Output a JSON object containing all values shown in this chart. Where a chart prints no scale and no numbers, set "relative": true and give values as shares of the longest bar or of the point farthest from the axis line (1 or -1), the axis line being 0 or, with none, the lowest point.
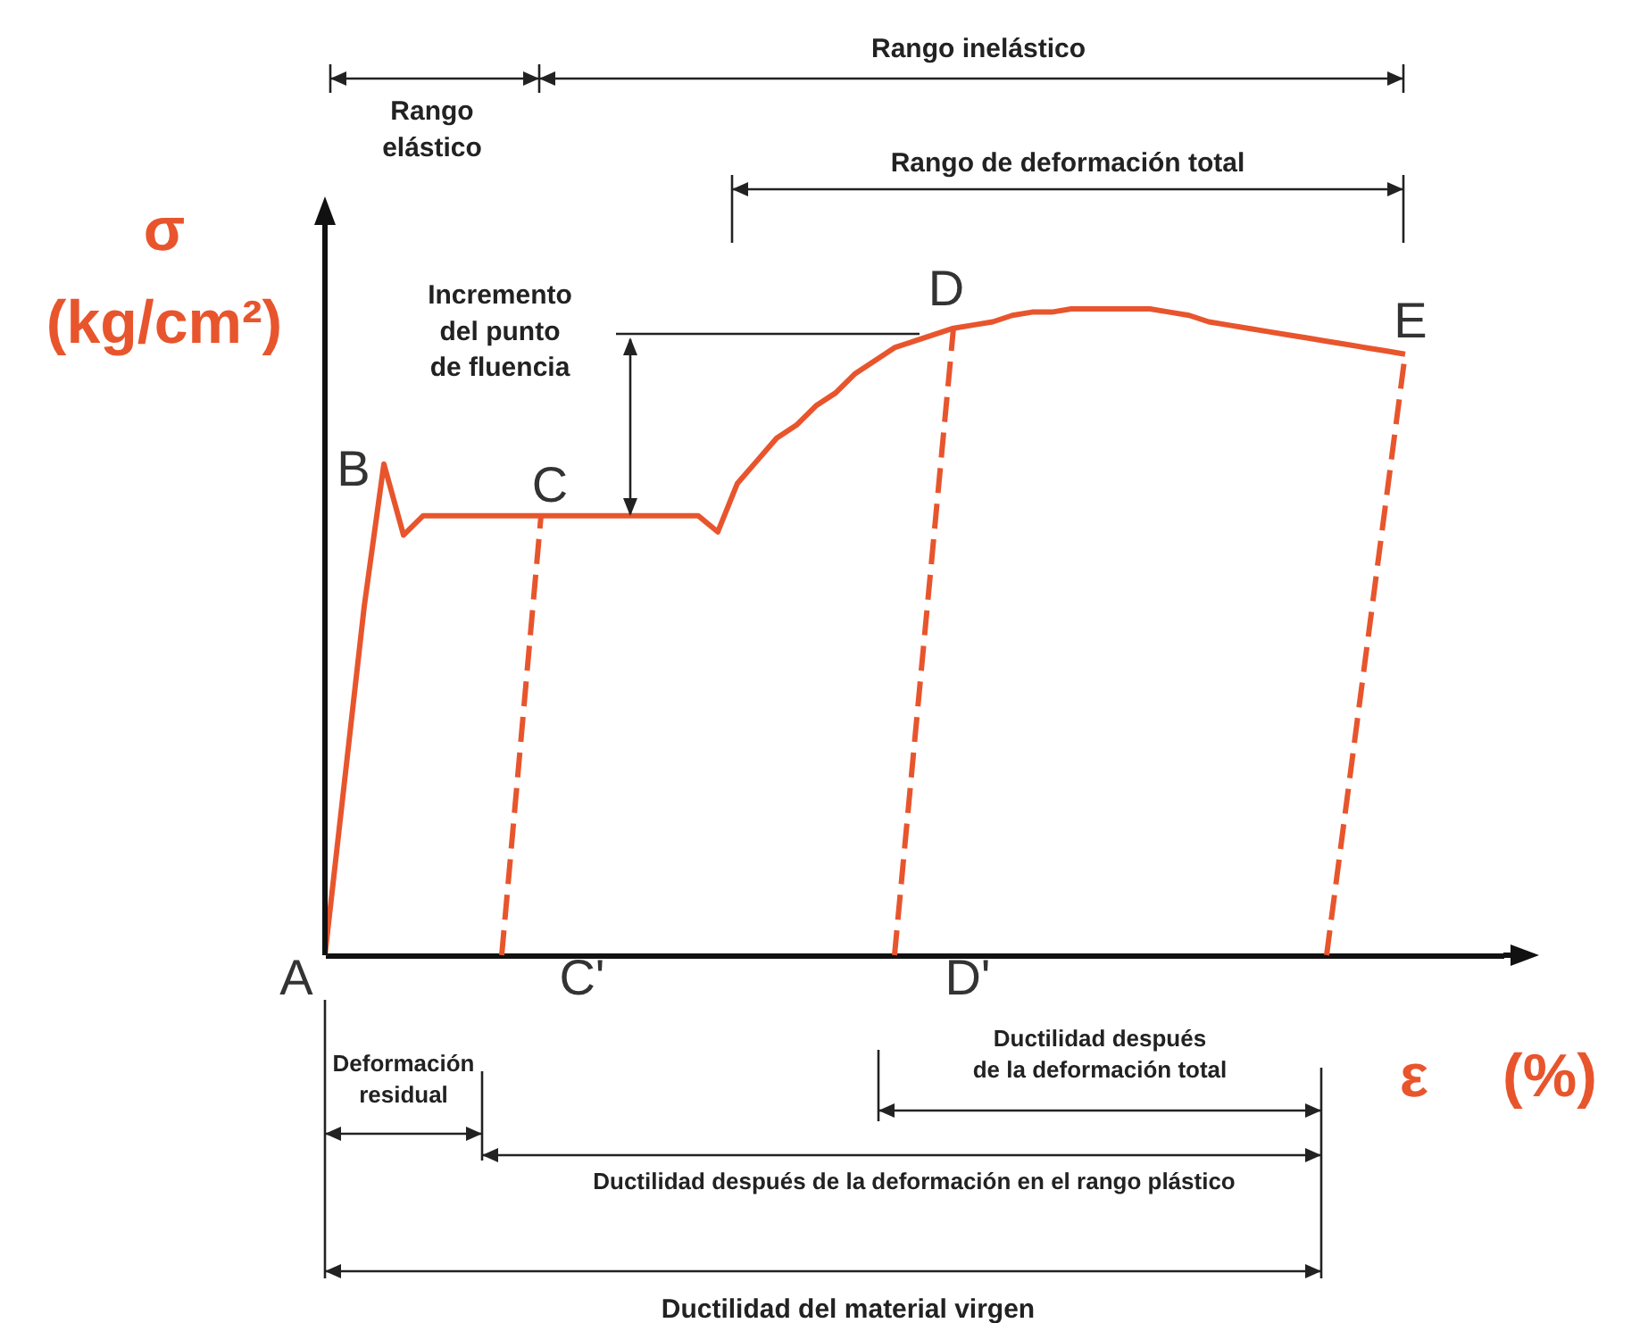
{
  "chart_data": {
    "type": "line",
    "relative": true,
    "tick_labels": false,
    "xlabel": "ε (%)",
    "ylabel": "σ (kg/cm²)",
    "categories": [
      null,
      null,
      null,
      null,
      null,
      null,
      null,
      null,
      null,
      null,
      null,
      null,
      null,
      null,
      null,
      null,
      null,
      null,
      null,
      null,
      null,
      null,
      null,
      null,
      null,
      null,
      null,
      null,
      null,
      null,
      null,
      null,
      null,
      null,
      null,
      null,
      null,
      null,
      null,
      null,
      null,
      null,
      null,
      null,
      null,
      null,
      null,
      null,
      null,
      null,
      null,
      null,
      null,
      null,
      null,
      null,
      null,
      null,
      null,
      null,
      null
    ],
    "series": [
      {
        "color": "#e8552d",
        "line_style": "solid",
        "values": [
          0,
          0.27,
          0.54,
          0.76,
          0.65,
          0.68,
          0.68,
          0.68,
          0.68,
          0.68,
          0.68,
          0.68,
          0.68,
          0.68,
          0.68,
          0.68,
          0.68,
          0.68,
          0.68,
          0.68,
          0.655,
          0.73,
          0.765,
          0.8,
          0.82,
          0.85,
          0.87,
          0.9,
          0.92,
          0.94,
          0.95,
          0.96,
          0.97,
          0.975,
          0.98,
          0.99,
          0.995,
          0.995,
          1,
          1,
          1,
          1,
          1,
          0.995,
          0.99,
          0.98,
          0.975,
          0.97,
          0.965,
          0.96,
          0.955,
          0.95,
          0.945,
          0.94,
          0.935,
          0.93,
          null,
          null,
          null,
          null,
          null
        ]
      },
      {
        "color": "#e8552d",
        "line_style": "dashed",
        "values": [
          null,
          null,
          null,
          null,
          null,
          null,
          null,
          null,
          null,
          0,
          null,
          0.68,
          null,
          null,
          null,
          null,
          null,
          null,
          null,
          null,
          null,
          null,
          null,
          null,
          null,
          null,
          null,
          null,
          null,
          null,
          null,
          null,
          null,
          null,
          null,
          null,
          null,
          null,
          null,
          null,
          null,
          null,
          null,
          null,
          null,
          null,
          null,
          null,
          null,
          null,
          null,
          null,
          null,
          null,
          null,
          null,
          null,
          null,
          null,
          null,
          null
        ]
      },
      {
        "color": "#e8552d",
        "line_style": "dashed",
        "values": [
          null,
          null,
          null,
          null,
          null,
          null,
          null,
          null,
          null,
          null,
          null,
          null,
          null,
          null,
          null,
          null,
          null,
          null,
          null,
          null,
          null,
          null,
          null,
          null,
          null,
          null,
          null,
          null,
          null,
          0,
          null,
          null,
          0.97,
          null,
          null,
          null,
          null,
          null,
          null,
          null,
          null,
          null,
          null,
          null,
          null,
          null,
          null,
          null,
          null,
          null,
          null,
          null,
          null,
          null,
          null,
          null,
          null,
          null,
          null,
          null,
          null
        ]
      },
      {
        "color": "#e8552d",
        "line_style": "dashed",
        "values": [
          null,
          null,
          null,
          null,
          null,
          null,
          null,
          null,
          null,
          null,
          null,
          null,
          null,
          null,
          null,
          null,
          null,
          null,
          null,
          null,
          null,
          null,
          null,
          null,
          null,
          null,
          null,
          null,
          null,
          null,
          null,
          null,
          null,
          null,
          null,
          null,
          null,
          null,
          null,
          null,
          null,
          null,
          null,
          null,
          null,
          null,
          null,
          null,
          null,
          null,
          null,
          0,
          null,
          null,
          null,
          0.93,
          null,
          null,
          null,
          null,
          null
        ]
      }
    ],
    "annotations": [
      "A",
      "B",
      "C",
      "C'",
      "D",
      "D'",
      "E",
      "Rango elástico",
      "Rango inelástico",
      "Rango de deformación total",
      "Incremento del punto de fluencia",
      "Deformación residual",
      "Ductilidad después de la deformación total",
      "Ductilidad después de la deformación en el rango plástico",
      "Ductilidad del material virgen"
    ]
  }
}
